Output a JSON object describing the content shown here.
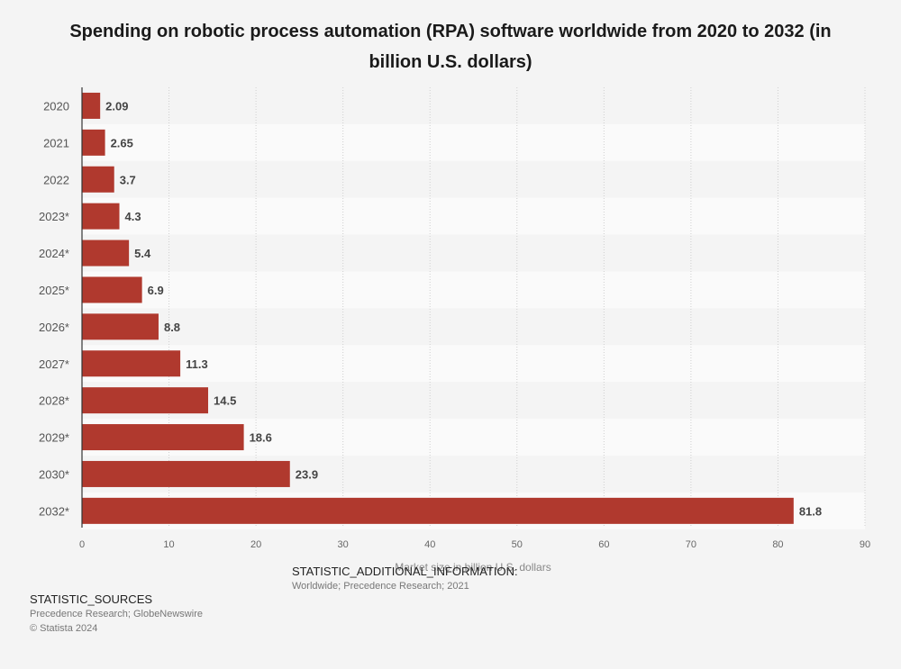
{
  "chart_data": {
    "type": "bar",
    "orientation": "horizontal",
    "title": "Spending on robotic process automation (RPA) software worldwide from 2020 to 2032 (in billion U.S. dollars)",
    "xlabel": "Market size in billion U.S. dollars",
    "ylabel": "",
    "categories": [
      "2020",
      "2021",
      "2022",
      "2023*",
      "2024*",
      "2025*",
      "2026*",
      "2027*",
      "2028*",
      "2029*",
      "2030*",
      "2032*"
    ],
    "values": [
      2.09,
      2.65,
      3.7,
      4.3,
      5.4,
      6.9,
      8.8,
      11.3,
      14.5,
      18.6,
      23.9,
      81.8
    ],
    "value_labels": [
      "2.09",
      "2.65",
      "3.7",
      "4.3",
      "5.4",
      "6.9",
      "8.8",
      "11.3",
      "14.5",
      "18.6",
      "23.9",
      "81.8"
    ],
    "xlim": [
      0,
      90
    ],
    "xticks": [
      0,
      10,
      20,
      30,
      40,
      50,
      60,
      70,
      80,
      90
    ],
    "grid": true,
    "bar_color": "#b0392e"
  },
  "footer": {
    "info_label": "STATISTIC_ADDITIONAL_INFORMATION:",
    "info_value": "Worldwide; Precedence Research; 2021",
    "sources_label": "STATISTIC_SOURCES",
    "sources_value": "Precedence Research; GlobeNewswire",
    "copyright": "© Statista 2024"
  }
}
